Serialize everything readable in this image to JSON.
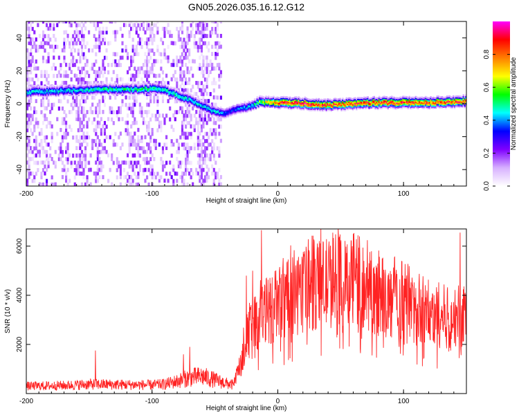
{
  "figure_title": "GN05.2026.035.16.12.G12",
  "chart_data": [
    {
      "type": "heatmap",
      "title": "GN05.2026.035.16.12.G12",
      "xlabel": "Height of straight line (km)",
      "ylabel": "Frequency (Hz)",
      "xlim": [
        -200,
        150
      ],
      "ylim": [
        -50,
        50
      ],
      "x_ticks": [
        -200,
        -100,
        0,
        100
      ],
      "y_ticks": [
        -40,
        -20,
        0,
        20,
        40
      ],
      "grid": false,
      "colorbar": {
        "label": "Normalized spectral amplitude",
        "range": [
          0,
          1
        ],
        "ticks": [
          0.0,
          0.2,
          0.4,
          0.6,
          0.8
        ],
        "colors": [
          "#ffffff",
          "#d7b0ff",
          "#7f00ff",
          "#0000ff",
          "#00ffff",
          "#00ff00",
          "#ffff00",
          "#ff7f00",
          "#ff0000",
          "#ff00ff"
        ]
      },
      "ridge": {
        "x": [
          -200,
          -180,
          -160,
          -140,
          -120,
          -100,
          -90,
          -80,
          -70,
          -60,
          -50,
          -45,
          -40,
          -30,
          -20,
          -15,
          0,
          20,
          40,
          60,
          80,
          100,
          120,
          140,
          150
        ],
        "y": [
          7,
          7.5,
          8,
          8.5,
          8.5,
          9,
          8,
          5,
          2,
          -2,
          -5,
          -6,
          -5,
          -3,
          -1,
          1,
          0.5,
          0,
          -1,
          0,
          0.5,
          0.5,
          0.5,
          1,
          1.5
        ],
        "amplitude": [
          0.45,
          0.45,
          0.45,
          0.5,
          0.5,
          0.5,
          0.5,
          0.5,
          0.45,
          0.45,
          0.45,
          0.4,
          0.35,
          0.4,
          0.45,
          0.6,
          0.85,
          0.9,
          0.85,
          0.85,
          0.85,
          0.85,
          0.85,
          0.85,
          0.8
        ]
      },
      "noise_region": [
        -200,
        -45
      ]
    },
    {
      "type": "line",
      "xlabel": "Height of straight line (km)",
      "ylabel": "SNR (10 * v/v)",
      "xlim": [
        -200,
        150
      ],
      "ylim": [
        0,
        6700
      ],
      "x_ticks": [
        -200,
        -100,
        0,
        100
      ],
      "y_ticks": [
        2000,
        4000,
        6000
      ],
      "grid": false,
      "color": "#ff2222",
      "series": [
        {
          "envelope_x": [
            -200,
            -170,
            -150,
            -120,
            -100,
            -90,
            -80,
            -70,
            -60,
            -50,
            -40,
            -35,
            -30,
            -25,
            -20,
            -15,
            -10,
            -5,
            0,
            10,
            20,
            30,
            40,
            50,
            60,
            70,
            80,
            90,
            100,
            110,
            120,
            130,
            140,
            150
          ],
          "envelope_y": [
            300,
            330,
            380,
            360,
            350,
            380,
            500,
            650,
            700,
            550,
            400,
            350,
            1200,
            2200,
            2800,
            3000,
            3300,
            3500,
            3600,
            3900,
            4200,
            4400,
            4500,
            4600,
            4500,
            4300,
            4000,
            3700,
            3500,
            3300,
            3200,
            3150,
            3100,
            3200
          ],
          "peaks": [
            {
              "x": -145,
              "y": 1750
            },
            {
              "x": -75,
              "y": 1600
            },
            {
              "x": -70,
              "y": 1900
            },
            {
              "x": -25,
              "y": 4800
            },
            {
              "x": -20,
              "y": 5000
            },
            {
              "x": -13,
              "y": 6650
            },
            {
              "x": 50,
              "y": 6100
            },
            {
              "x": 60,
              "y": 6500
            },
            {
              "x": 65,
              "y": 6400
            },
            {
              "x": 145,
              "y": 6550
            }
          ]
        }
      ]
    }
  ]
}
